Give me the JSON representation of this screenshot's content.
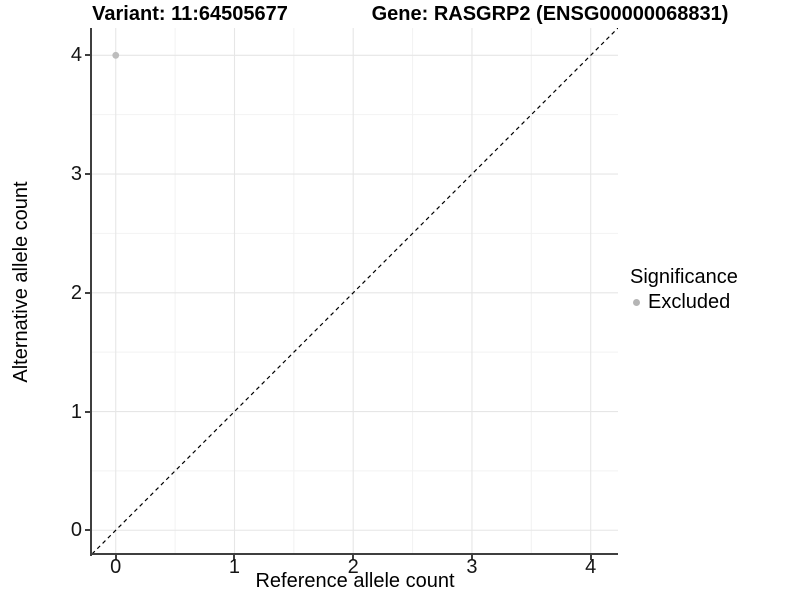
{
  "header": {
    "variant_title": "Variant: 11:64505677",
    "gene_title": "Gene: RASGRP2 (ENSG00000068831)"
  },
  "chart_data": {
    "type": "scatter",
    "title": "Variant: 11:64505677  /  Gene: RASGRP2 (ENSG00000068831)",
    "xlabel": "Reference allele count",
    "ylabel": "Alternative allele count",
    "xlim": [
      -0.2,
      4.23
    ],
    "ylim": [
      -0.2,
      4.23
    ],
    "x_ticks": [
      0,
      1,
      2,
      3,
      4
    ],
    "y_ticks": [
      0,
      1,
      2,
      3,
      4
    ],
    "x_minor_ticks": [
      0.5,
      1.5,
      2.5,
      3.5
    ],
    "y_minor_ticks": [
      0.5,
      1.5,
      2.5,
      3.5
    ],
    "grid": true,
    "points": [
      {
        "x": 0,
        "y": 4,
        "series": "Excluded"
      }
    ],
    "identity_line": {
      "slope": 1,
      "intercept": 0,
      "style": "dashed"
    },
    "legend": {
      "title": "Significance",
      "position": "right",
      "items": [
        {
          "label": "Excluded",
          "color": "#b5b5b5"
        }
      ]
    }
  },
  "colors": {
    "background": "#ffffff",
    "point": "#bdbdbd",
    "axis_line": "#3f3f3f",
    "tick_label": "#151515",
    "grid_major": "#e6e6e6",
    "grid_minor": "#f2f2f2",
    "identity_line": "#000000",
    "title_text": "#000000"
  }
}
